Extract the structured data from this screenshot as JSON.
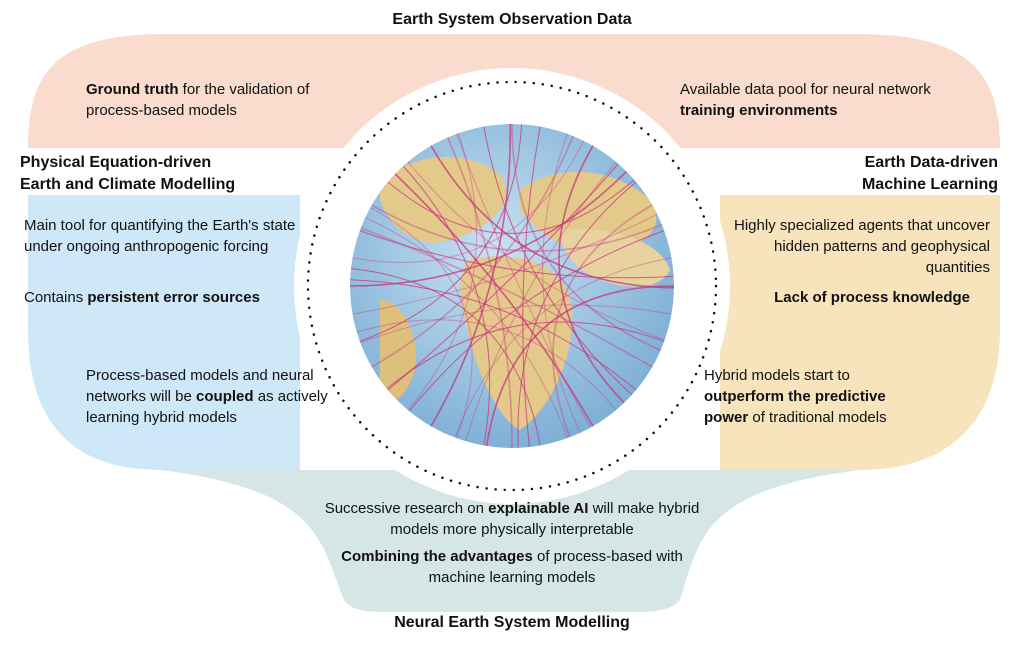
{
  "top_heading": "Earth System Observation Data",
  "bottom_heading": "Neural Earth System Modelling",
  "left_heading": [
    "Physical Equation-driven",
    "Earth and Climate Modelling"
  ],
  "right_heading": [
    "Earth Data-driven",
    "Machine Learning"
  ],
  "top_left": {
    "bold": "Ground truth",
    "rest": " for the validation of process-based models"
  },
  "top_right": {
    "pre": "Available data pool for neural network ",
    "bold": "training environments"
  },
  "left_upper": {
    "text": "Main tool for quantifying the Earth's state under ongoing anthropogenic forcing",
    "pre2": "Contains ",
    "bold2": "persistent error sources"
  },
  "right_upper": {
    "text": "Highly specialized agents that uncover hidden patterns and geophysical quantities",
    "bold2": "Lack of process knowledge"
  },
  "left_lower": {
    "pre": "Process-based models and neural networks will be ",
    "bold": "coupled",
    "post": " as actively learning hybrid models"
  },
  "right_lower": {
    "pre": "Hybrid models start to ",
    "bold": "outperform the predictive power",
    "post": " of traditional models"
  },
  "bottom": {
    "pre1": "Successive research on ",
    "bold1": "explainable AI",
    "post1": " will make hybrid models more physically interpretable",
    "bold2": "Combining the advantages",
    "post2": " of process-based with machine learning models"
  },
  "colors": {
    "observation": "#f9dccd",
    "physical": "#cfe8f7",
    "ml": "#f7e4bd",
    "neural": "#d6e6e6",
    "network_lines": "#c8337a",
    "ocean": "#9fc6e2",
    "land": "#e3c98a"
  },
  "icons": [
    "globe-network-icon",
    "dotted-ring"
  ]
}
